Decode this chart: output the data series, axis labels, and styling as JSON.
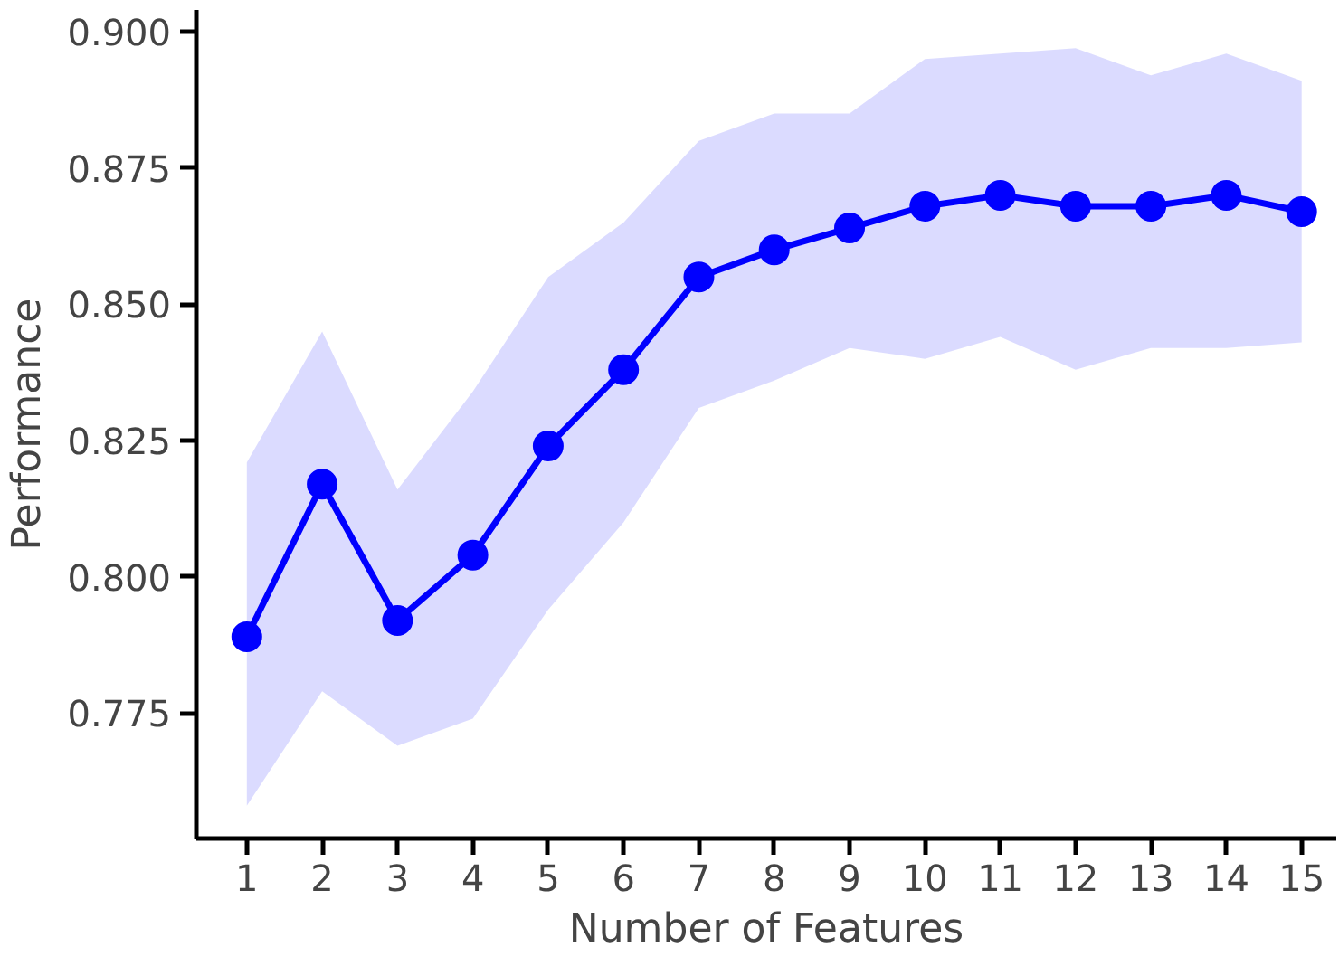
{
  "chart_data": {
    "type": "line",
    "xlabel": "Number of Features",
    "ylabel": "Performance",
    "x": [
      1,
      2,
      3,
      4,
      5,
      6,
      7,
      8,
      9,
      10,
      11,
      12,
      13,
      14,
      15
    ],
    "xlim": [
      0.33,
      15.46
    ],
    "xticks": [
      1,
      2,
      3,
      4,
      5,
      6,
      7,
      8,
      9,
      10,
      11,
      12,
      13,
      14,
      15
    ],
    "ylim": [
      0.752,
      0.904
    ],
    "yticks": [
      {
        "value": 0.775,
        "label": "0.775"
      },
      {
        "value": 0.8,
        "label": "0.800"
      },
      {
        "value": 0.825,
        "label": "0.825"
      },
      {
        "value": 0.85,
        "label": "0.850"
      },
      {
        "value": 0.875,
        "label": "0.875"
      },
      {
        "value": 0.9,
        "label": "0.900"
      }
    ],
    "series": [
      {
        "color": "#0000ff",
        "values": [
          0.789,
          0.817,
          0.792,
          0.804,
          0.824,
          0.838,
          0.855,
          0.86,
          0.864,
          0.868,
          0.87,
          0.868,
          0.868,
          0.87,
          0.867
        ],
        "lower": [
          0.758,
          0.779,
          0.769,
          0.774,
          0.794,
          0.81,
          0.831,
          0.836,
          0.842,
          0.84,
          0.844,
          0.838,
          0.842,
          0.842,
          0.843
        ],
        "upper": [
          0.821,
          0.845,
          0.816,
          0.834,
          0.855,
          0.865,
          0.88,
          0.885,
          0.885,
          0.895,
          0.896,
          0.897,
          0.892,
          0.896,
          0.891
        ]
      }
    ],
    "marker": "circle",
    "line_style": "solid",
    "grid": false
  }
}
